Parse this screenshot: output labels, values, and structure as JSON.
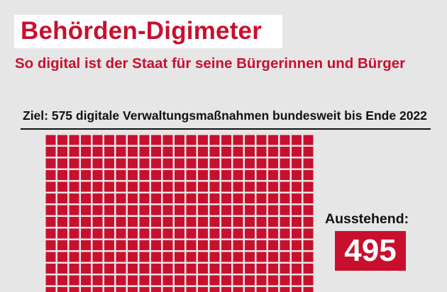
{
  "header": {
    "title": "Behörden-Digimeter",
    "subtitle": "So digital ist der Staat für seine Bürgerinnen und Bürger"
  },
  "goal_text": "Ziel: 575 digitale Verwaltungsmaßnahmen bundesweit bis Ende 2022",
  "pending": {
    "label": "Ausstehend:",
    "value": "495"
  },
  "colors": {
    "accent": "#c8102e",
    "background": "#e6e6e6",
    "text": "#111111"
  },
  "chart_data": {
    "type": "waffle",
    "total": 575,
    "categories": [
      "Ausstehend"
    ],
    "values": [
      495
    ],
    "unit_color": "#c8102e"
  }
}
